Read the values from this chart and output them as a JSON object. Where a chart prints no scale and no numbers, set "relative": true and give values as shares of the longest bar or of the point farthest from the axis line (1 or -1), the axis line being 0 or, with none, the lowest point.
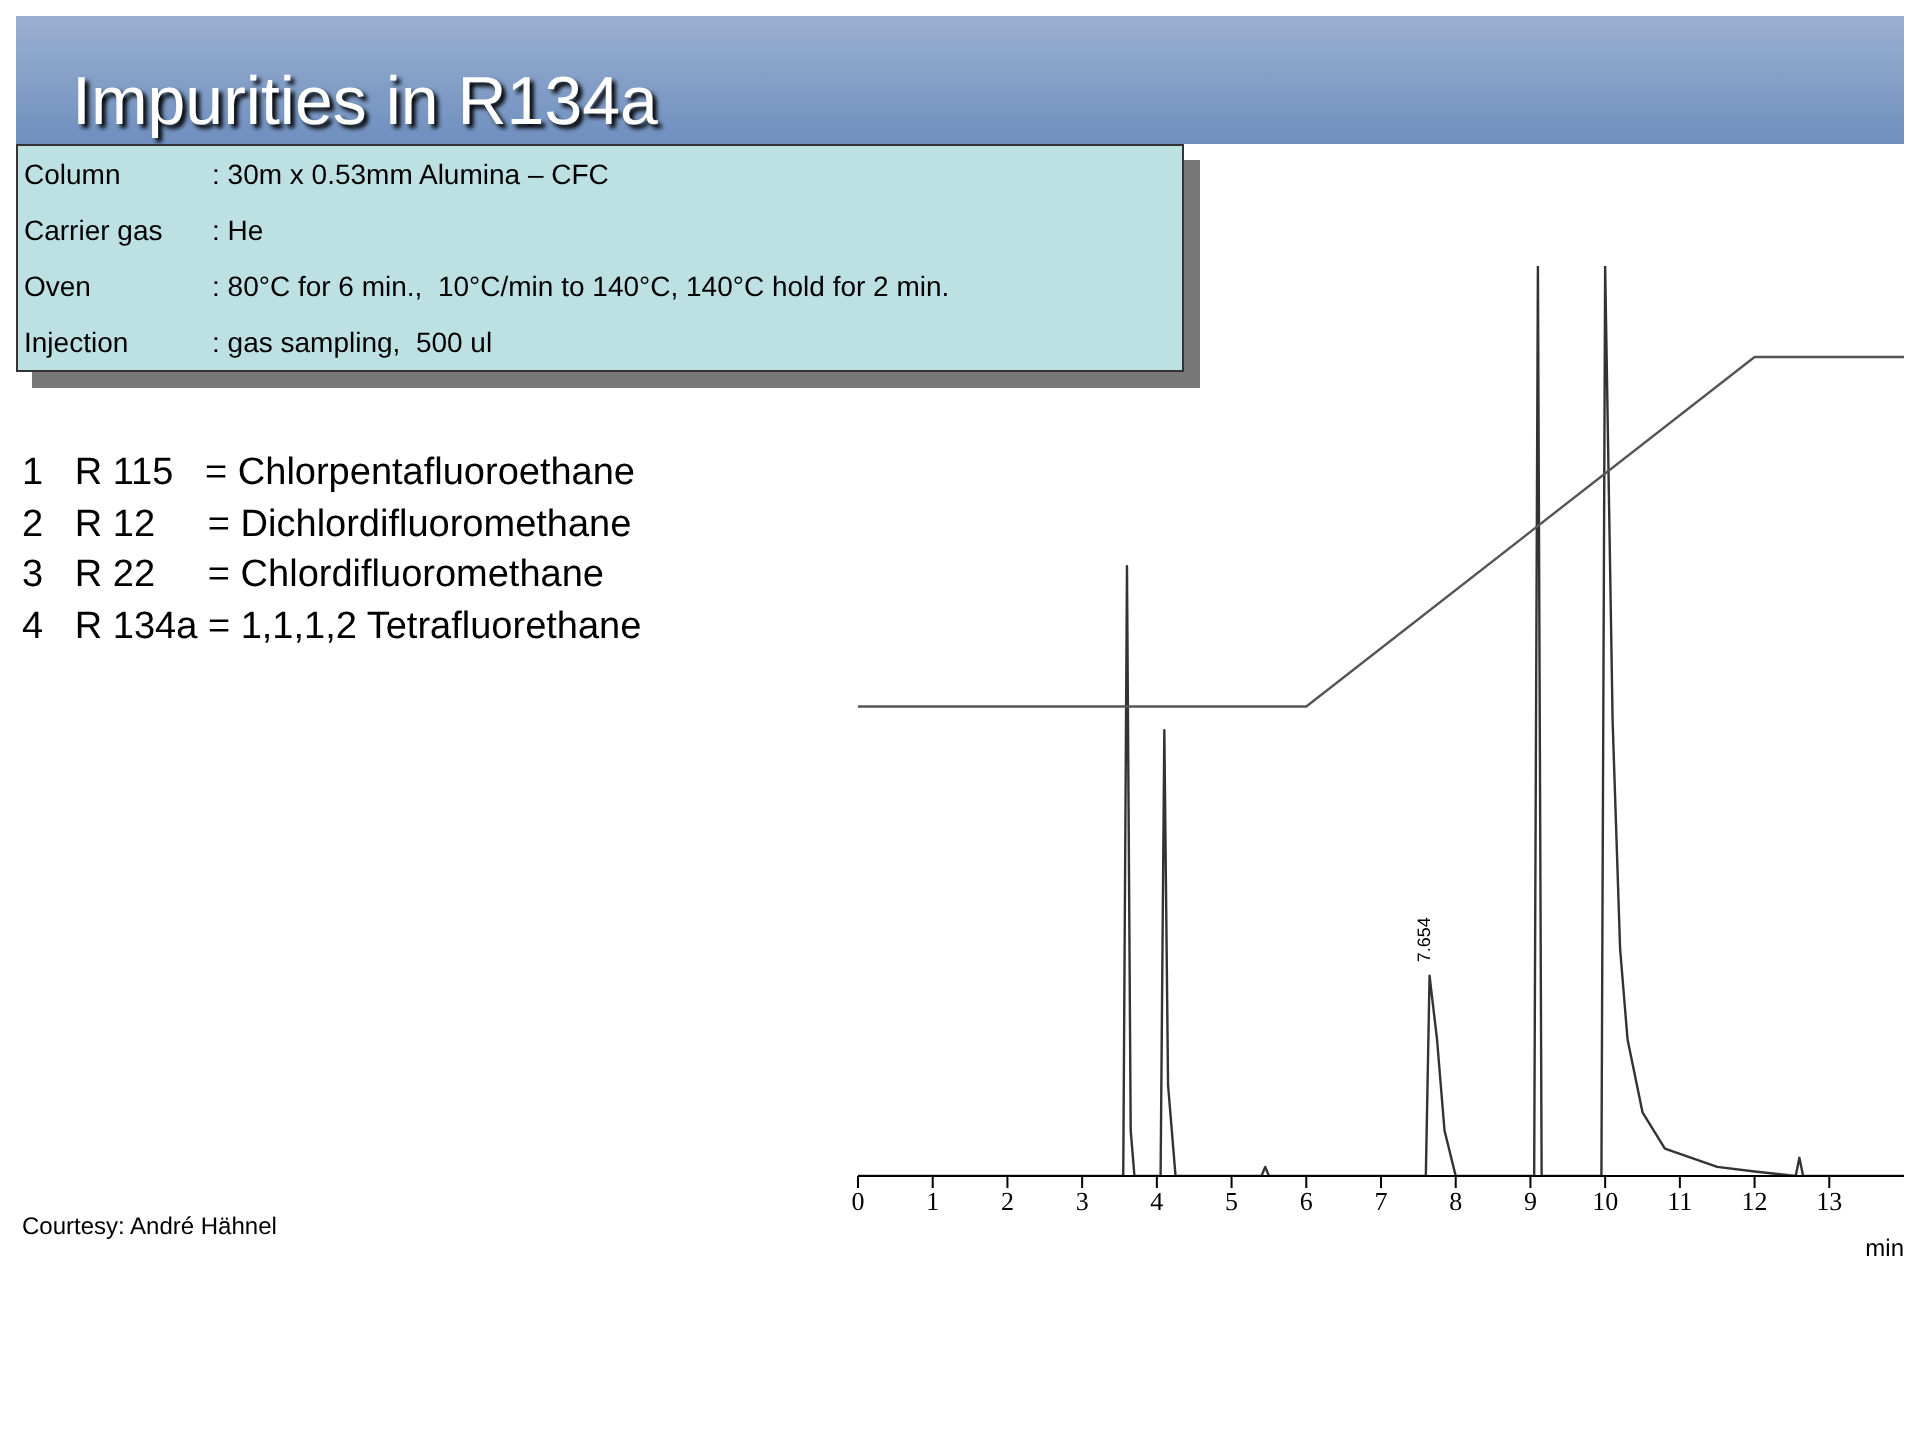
{
  "chart_data": {
    "type": "line",
    "title": "Impurities in R134a",
    "xlabel": "min",
    "relative": true,
    "xlim": [
      0,
      14
    ],
    "xticks": [
      0,
      1,
      2,
      3,
      4,
      5,
      6,
      7,
      8,
      9,
      10,
      11,
      12,
      13
    ],
    "marker": "none",
    "line_style": "solid",
    "series": [
      {
        "color": "#333333",
        "x": [
          0,
          3.55,
          3.6,
          3.65,
          3.7,
          4.05,
          4.1,
          4.15,
          4.25,
          5.4,
          5.45,
          5.5,
          7.6,
          7.65,
          7.75,
          7.85,
          8.0,
          9.05,
          9.1,
          9.15,
          9.95,
          10.0,
          10.1,
          10.2,
          10.3,
          10.5,
          10.8,
          11.5,
          12.0,
          12.55,
          12.6,
          12.65,
          14
        ],
        "values": [
          0,
          0,
          0.67,
          0.05,
          0,
          0,
          0.49,
          0.1,
          0,
          0,
          0.01,
          0,
          0,
          0.22,
          0.15,
          0.05,
          0,
          0,
          1,
          0,
          0,
          1,
          0.5,
          0.25,
          0.15,
          0.07,
          0.03,
          0.01,
          0.005,
          0,
          0.02,
          0,
          0
        ]
      },
      {
        "color": "#555555",
        "x": [
          0,
          6,
          12,
          14
        ],
        "values": [
          0.516,
          0.516,
          0.9,
          0.9
        ]
      }
    ],
    "annotations": [
      "Column",
      "Carrier gas",
      "Oven",
      "Injection",
      ": 30m x 0.53mm Alumina – CFC",
      ": He",
      ": 80°C for 6 min.,  10°C/min to 140°C, 140°C hold for 2 min.",
      ": gas sampling,  500 ul",
      "1   R 115   = Chlorpentafluoroethane",
      "2   R 12     = Dichlordifluoromethane",
      "3   R 22     = Chlordifluoromethane",
      "4   R 134a = 1,1,1,2 Tetrafluorethane",
      "Courtesy: André Hähnel",
      {
        "text": "7.654",
        "x": 7.65,
        "y": 0.22
      }
    ]
  }
}
